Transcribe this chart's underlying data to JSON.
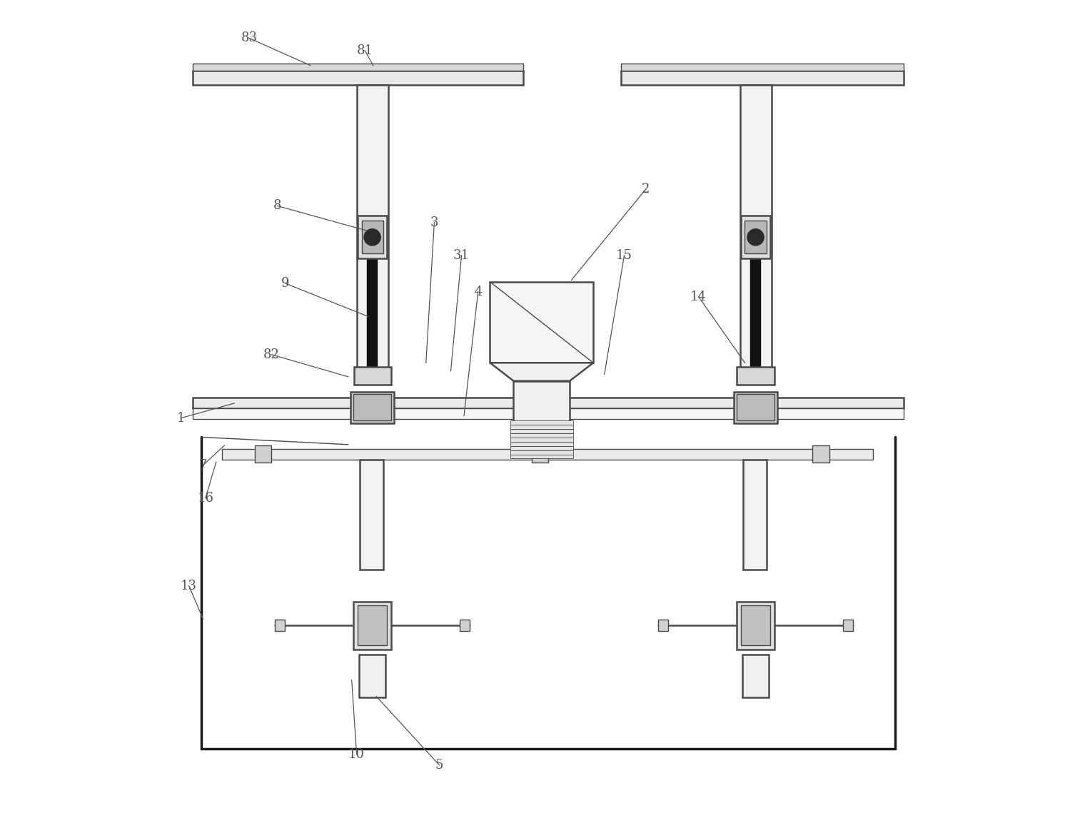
{
  "bg_color": "#ffffff",
  "line_color": "#4a4a4a",
  "dark_line": "#1a1a1a",
  "label_color": "#555555",
  "label_fontsize": 13,
  "label_positions": {
    "83": {
      "lpos": [
        0.148,
        0.955
      ],
      "tpos": [
        0.222,
        0.922
      ]
    },
    "81": {
      "lpos": [
        0.288,
        0.94
      ],
      "tpos": [
        0.298,
        0.922
      ]
    },
    "8": {
      "lpos": [
        0.182,
        0.752
      ],
      "tpos": [
        0.29,
        0.722
      ]
    },
    "9": {
      "lpos": [
        0.192,
        0.658
      ],
      "tpos": [
        0.292,
        0.618
      ]
    },
    "82": {
      "lpos": [
        0.175,
        0.572
      ],
      "tpos": [
        0.268,
        0.545
      ]
    },
    "1": {
      "lpos": [
        0.065,
        0.495
      ],
      "tpos": [
        0.13,
        0.513
      ]
    },
    "7": {
      "lpos": [
        0.092,
        0.438
      ],
      "tpos": [
        0.118,
        0.462
      ]
    },
    "16": {
      "lpos": [
        0.095,
        0.398
      ],
      "tpos": [
        0.108,
        0.442
      ]
    },
    "13": {
      "lpos": [
        0.075,
        0.292
      ],
      "tpos": [
        0.092,
        0.252
      ]
    },
    "10": {
      "lpos": [
        0.278,
        0.088
      ],
      "tpos": [
        0.272,
        0.178
      ]
    },
    "5": {
      "lpos": [
        0.378,
        0.075
      ],
      "tpos": [
        0.302,
        0.158
      ]
    },
    "3": {
      "lpos": [
        0.372,
        0.732
      ],
      "tpos": [
        0.362,
        0.562
      ]
    },
    "31": {
      "lpos": [
        0.405,
        0.692
      ],
      "tpos": [
        0.392,
        0.552
      ]
    },
    "4": {
      "lpos": [
        0.425,
        0.648
      ],
      "tpos": [
        0.408,
        0.498
      ]
    },
    "2": {
      "lpos": [
        0.628,
        0.772
      ],
      "tpos": [
        0.538,
        0.662
      ]
    },
    "15": {
      "lpos": [
        0.602,
        0.692
      ],
      "tpos": [
        0.578,
        0.548
      ]
    },
    "14": {
      "lpos": [
        0.692,
        0.642
      ],
      "tpos": [
        0.748,
        0.562
      ]
    }
  }
}
